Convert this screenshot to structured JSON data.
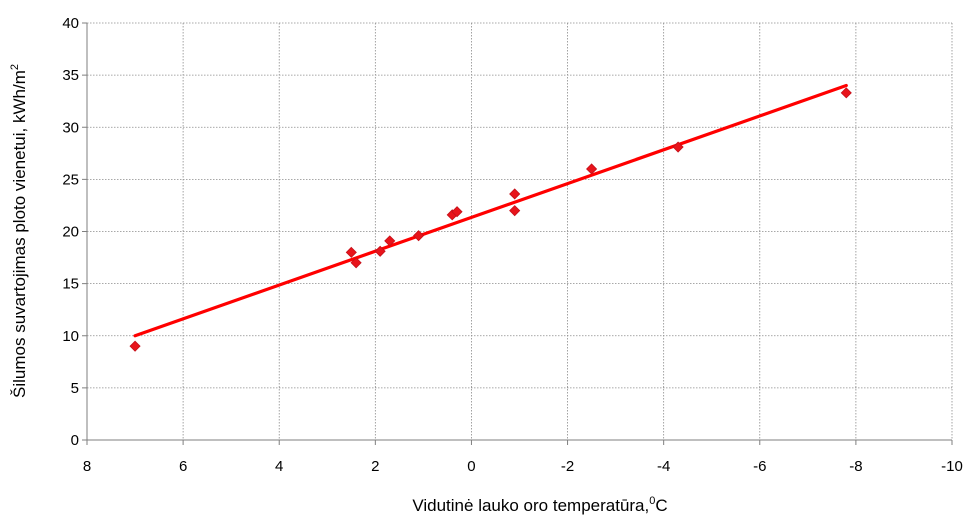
{
  "chart_data": {
    "type": "scatter",
    "title": "",
    "xlabel": "Vidutinė lauko oro temperatūra,",
    "xlabel_sup": "0",
    "xlabel_unit": "C",
    "ylabel": "Šilumos suvartojimas ploto vienetui,  kWh/m",
    "ylabel_sup": "2",
    "x_axis_reversed": true,
    "xlim": [
      8,
      -10
    ],
    "ylim": [
      0,
      40
    ],
    "x_ticks": [
      8,
      6,
      4,
      2,
      0,
      -2,
      -4,
      -6,
      -8,
      -10
    ],
    "y_ticks": [
      0,
      5,
      10,
      15,
      20,
      25,
      30,
      35,
      40
    ],
    "grid": true,
    "legend": "none",
    "series": [
      {
        "marker": "diamond",
        "color": "#e8141b",
        "points": [
          {
            "x": 7.0,
            "y": 9.0
          },
          {
            "x": 2.5,
            "y": 18.0
          },
          {
            "x": 2.4,
            "y": 17.0
          },
          {
            "x": 1.9,
            "y": 18.1
          },
          {
            "x": 1.7,
            "y": 19.1
          },
          {
            "x": 1.1,
            "y": 19.6
          },
          {
            "x": 0.4,
            "y": 21.6
          },
          {
            "x": 0.3,
            "y": 21.9
          },
          {
            "x": -0.9,
            "y": 22.0
          },
          {
            "x": -0.9,
            "y": 23.6
          },
          {
            "x": -2.5,
            "y": 26.0
          },
          {
            "x": -4.3,
            "y": 28.1
          },
          {
            "x": -7.8,
            "y": 33.3
          }
        ]
      }
    ],
    "trendline": {
      "type": "linear",
      "color": "#ff0000",
      "x_start": 7.0,
      "y_start": 10.0,
      "x_end": -7.8,
      "y_end": 34.0
    }
  }
}
